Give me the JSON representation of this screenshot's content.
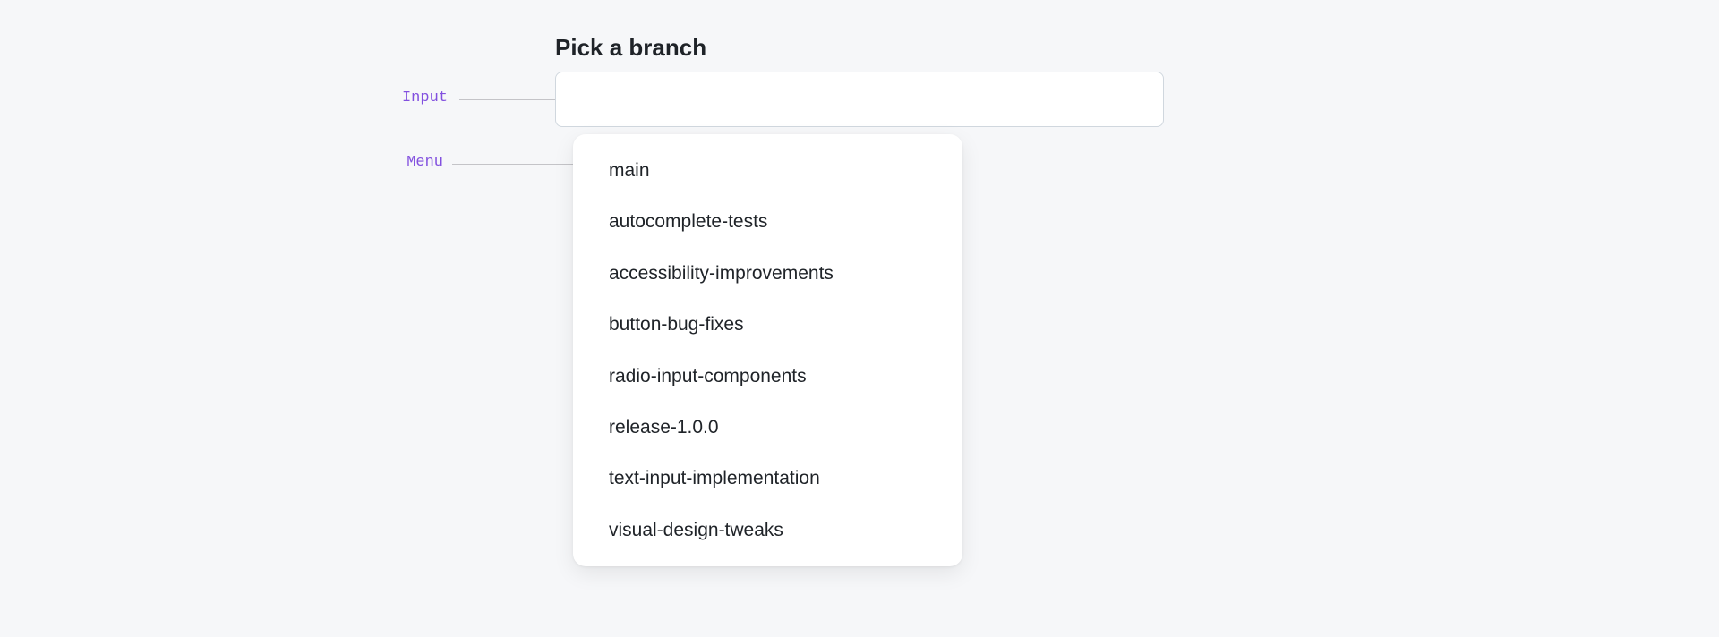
{
  "title": "Pick a branch",
  "annotations": {
    "input_label": "Input",
    "menu_label": "Menu"
  },
  "input": {
    "value": "",
    "placeholder": ""
  },
  "menu": {
    "items": [
      {
        "label": "main"
      },
      {
        "label": "autocomplete-tests"
      },
      {
        "label": "accessibility-improvements"
      },
      {
        "label": "button-bug-fixes"
      },
      {
        "label": "radio-input-components"
      },
      {
        "label": "release-1.0.0"
      },
      {
        "label": "text-input-implementation"
      },
      {
        "label": "visual-design-tweaks"
      }
    ]
  },
  "colors": {
    "background": "#f6f7f9",
    "text_primary": "#1f2328",
    "annotation": "#8250df",
    "border": "#d0d7de",
    "surface": "#ffffff",
    "line": "#c4c4c8"
  },
  "typography": {
    "title_fontsize": 26,
    "title_weight": 600,
    "menu_fontsize": 21,
    "annotation_fontsize": 17,
    "annotation_family": "monospace"
  }
}
